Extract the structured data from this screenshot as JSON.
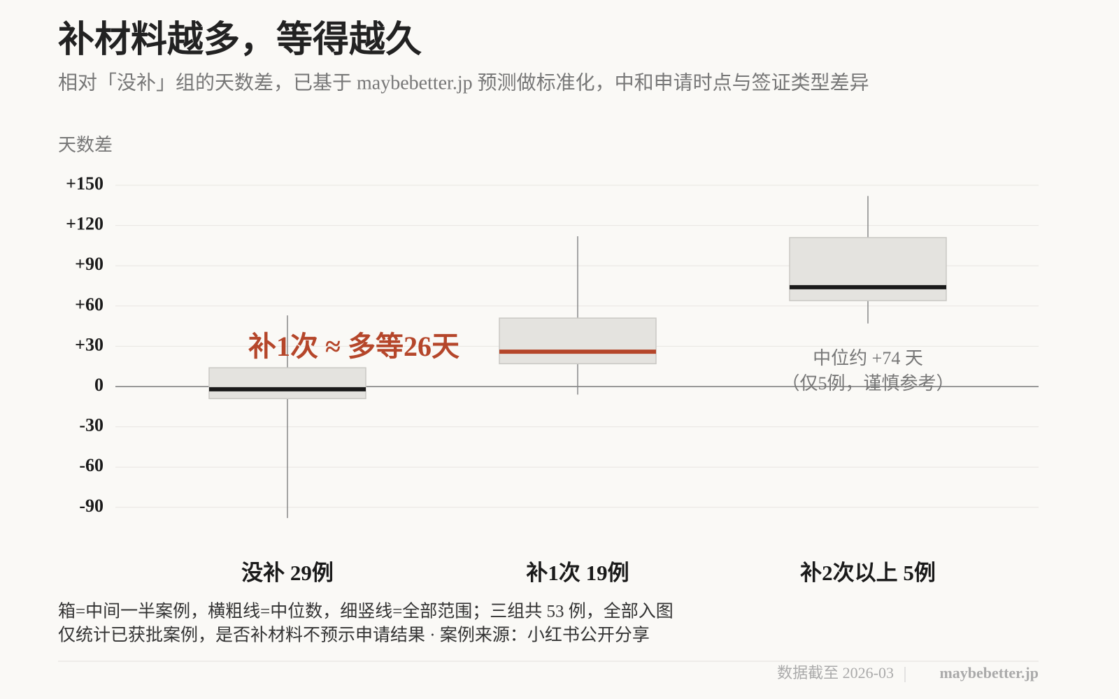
{
  "chart_data": {
    "type": "box",
    "title": "补材料越多，等得越久",
    "subtitle": "相对「没补」组的天数差，已基于 maybebetter.jp 预测做标准化，中和申请时点与签证类型差异",
    "y_label": "天数差",
    "categories": [
      "没补 29例",
      "补1次 19例",
      "补2次以上 5例"
    ],
    "boxes": [
      {
        "min": -98,
        "q1": -9,
        "median": -2,
        "q3": 14,
        "max": 53,
        "median_color": "#1a1a1a"
      },
      {
        "min": -6,
        "q1": 17,
        "median": 26,
        "q3": 51,
        "max": 112,
        "median_color": "#b5462a"
      },
      {
        "min": 47,
        "q1": 64,
        "median": 74,
        "q3": 111,
        "max": 142,
        "median_color": "#1a1a1a"
      }
    ],
    "color": "#e4e3df",
    "ylim": [
      -100,
      150
    ],
    "yticks": [
      {
        "value": 150,
        "label": "+150"
      },
      {
        "value": 120,
        "label": "+120"
      },
      {
        "value": 90,
        "label": "+90"
      },
      {
        "value": 60,
        "label": "+60"
      },
      {
        "value": 30,
        "label": "+30"
      },
      0,
      -30,
      -60,
      -90
    ],
    "grid": true,
    "annotations": [
      "补1次 ≈ 多等26天",
      "中位约 +74 天",
      "（仅5例，谨慎参考）"
    ],
    "notes": [
      "箱=中间一半案例，横粗线=中位数，细竖线=全部范围；三组共 53 例，全部入图",
      "仅统计已获批案例，是否补材料不预示申请结果 · 案例来源：小红书公开分享"
    ],
    "footer": {
      "date": "数据截至 2026-03",
      "site": "maybebetter.jp"
    }
  }
}
